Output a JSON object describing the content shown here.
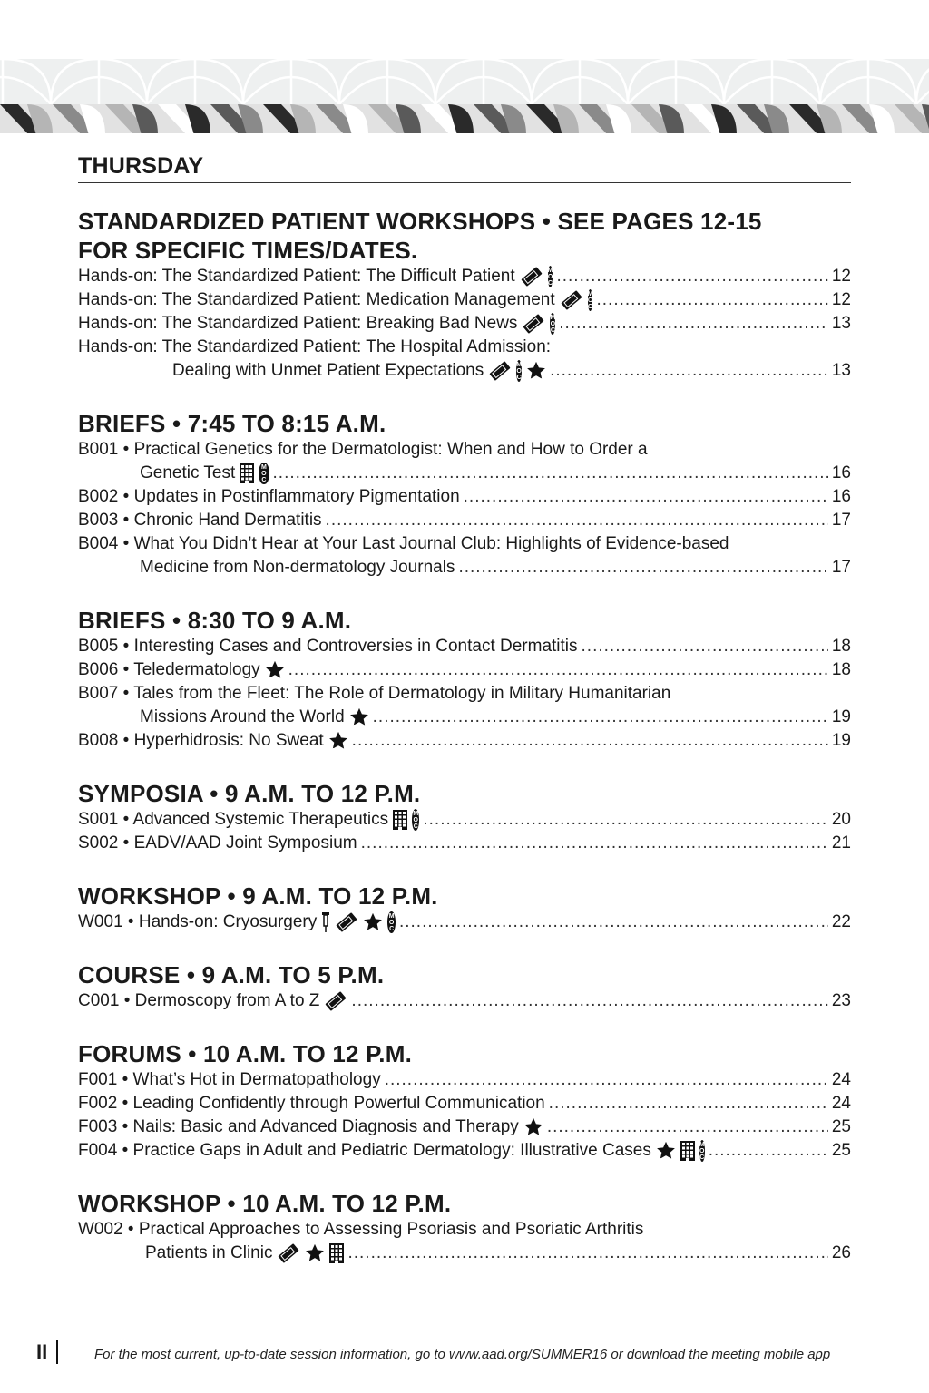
{
  "day": "THURSDAY",
  "sections": [
    {
      "title_lines": [
        "STANDARDIZED PATIENT WORKSHOPS • SEE PAGES 12-15",
        "FOR SPECIFIC TIMES/DATES."
      ],
      "indent": 104,
      "items": [
        {
          "lines": [
            "Hands-on: The Standardized Patient: The Difficult Patient"
          ],
          "icons": [
            "ticket",
            "moc"
          ],
          "page": "12"
        },
        {
          "lines": [
            "Hands-on: The Standardized Patient: Medication Management"
          ],
          "icons": [
            "ticket",
            "moc"
          ],
          "page": "12"
        },
        {
          "lines": [
            "Hands-on: The Standardized Patient: Breaking Bad News"
          ],
          "icons": [
            "ticket",
            "moc"
          ],
          "page": "13"
        },
        {
          "lines": [
            "Hands-on: The Standardized Patient: The Hospital Admission:",
            "Dealing with Unmet Patient Expectations"
          ],
          "icons": [
            "ticket",
            "moc",
            "new"
          ],
          "page": "13"
        }
      ]
    },
    {
      "title_lines": [
        "BRIEFS • 7:45 TO 8:15 A.M."
      ],
      "indent": 68,
      "items": [
        {
          "lines": [
            "B001 • Practical Genetics for the Dermatologist: When and How to Order a",
            "Genetic Test"
          ],
          "icons": [
            "grid",
            "moc"
          ],
          "page": "16"
        },
        {
          "lines": [
            "B002 • Updates in Postinflammatory Pigmentation"
          ],
          "icons": [],
          "page": "16"
        },
        {
          "lines": [
            "B003 • Chronic Hand Dermatitis"
          ],
          "icons": [],
          "page": "17"
        },
        {
          "lines": [
            "B004 • What You Didn’t Hear at Your Last Journal Club: Highlights of Evidence-based",
            "Medicine from Non-dermatology Journals"
          ],
          "icons": [],
          "page": "17"
        }
      ]
    },
    {
      "title_lines": [
        "BRIEFS • 8:30 TO 9 A.M."
      ],
      "indent": 68,
      "items": [
        {
          "lines": [
            "B005 • Interesting Cases and Controversies in Contact Dermatitis"
          ],
          "icons": [],
          "page": "18"
        },
        {
          "lines": [
            "B006 • Teledermatology"
          ],
          "icons": [
            "new"
          ],
          "page": "18"
        },
        {
          "lines": [
            "B007 • Tales from the Fleet: The Role of Dermatology in Military Humanitarian",
            "Missions Around the World"
          ],
          "icons": [
            "new"
          ],
          "page": "19"
        },
        {
          "lines": [
            "B008 • Hyperhidrosis: No Sweat"
          ],
          "icons": [
            "new"
          ],
          "page": "19"
        }
      ]
    },
    {
      "title_lines": [
        "SYMPOSIA  • 9 A.M. TO 12 P.M."
      ],
      "indent": 68,
      "items": [
        {
          "lines": [
            "S001 •  Advanced Systemic Therapeutics"
          ],
          "icons": [
            "grid",
            "moc"
          ],
          "page": "20"
        },
        {
          "lines": [
            "S002 •  EADV/AAD Joint Symposium"
          ],
          "icons": [],
          "page": "21"
        }
      ]
    },
    {
      "title_lines": [
        "WORKSHOP • 9 A.M. TO 12 P.M."
      ],
      "indent": 68,
      "items": [
        {
          "lines": [
            "W001 • Hands-on: Cryosurgery"
          ],
          "icons": [
            "probe",
            "ticket",
            "new",
            "moc"
          ],
          "page": "22"
        }
      ]
    },
    {
      "title_lines": [
        "COURSE • 9 A.M. TO 5 P.M."
      ],
      "indent": 68,
      "items": [
        {
          "lines": [
            "C001 • Dermoscopy from A to Z"
          ],
          "icons": [
            "ticket"
          ],
          "page": "23"
        }
      ]
    },
    {
      "title_lines": [
        "FORUMS • 10 A.M. TO 12 P.M."
      ],
      "indent": 68,
      "items": [
        {
          "lines": [
            "F001 • What’s Hot in Dermatopathology"
          ],
          "icons": [],
          "page": "24"
        },
        {
          "lines": [
            "F002 • Leading Confidently through Powerful Communication"
          ],
          "icons": [],
          "page": "24"
        },
        {
          "lines": [
            "F003 • Nails: Basic and Advanced Diagnosis and Therapy"
          ],
          "icons": [
            "new"
          ],
          "page": "25"
        },
        {
          "lines": [
            "F004 • Practice Gaps in Adult and Pediatric Dermatology: Illustrative Cases"
          ],
          "icons": [
            "new",
            "grid",
            "moc"
          ],
          "page": "25"
        }
      ]
    },
    {
      "title_lines": [
        "WORKSHOP  • 10 A.M. TO 12 P.M."
      ],
      "indent": 74,
      "items": [
        {
          "lines": [
            "W002 • Practical Approaches to Assessing Psoriasis and Psoriatic Arthritis",
            "Patients in Clinic"
          ],
          "icons": [
            "ticket",
            "new",
            "grid"
          ],
          "page": "26"
        }
      ]
    }
  ],
  "icon_labels": {
    "moc": [
      "M",
      "O",
      "C"
    ],
    "new": "NEW"
  },
  "footer": {
    "page_number": "II",
    "note": "For the most current, up-to-date session information, go to www.aad.org/SUMMER16 or download the meeting mobile app"
  },
  "colors": {
    "text": "#1a1a1a",
    "banner_light": "#eef0f0",
    "banner_dark": "#2a2a2a",
    "banner_mid": "#8a8a8a"
  }
}
